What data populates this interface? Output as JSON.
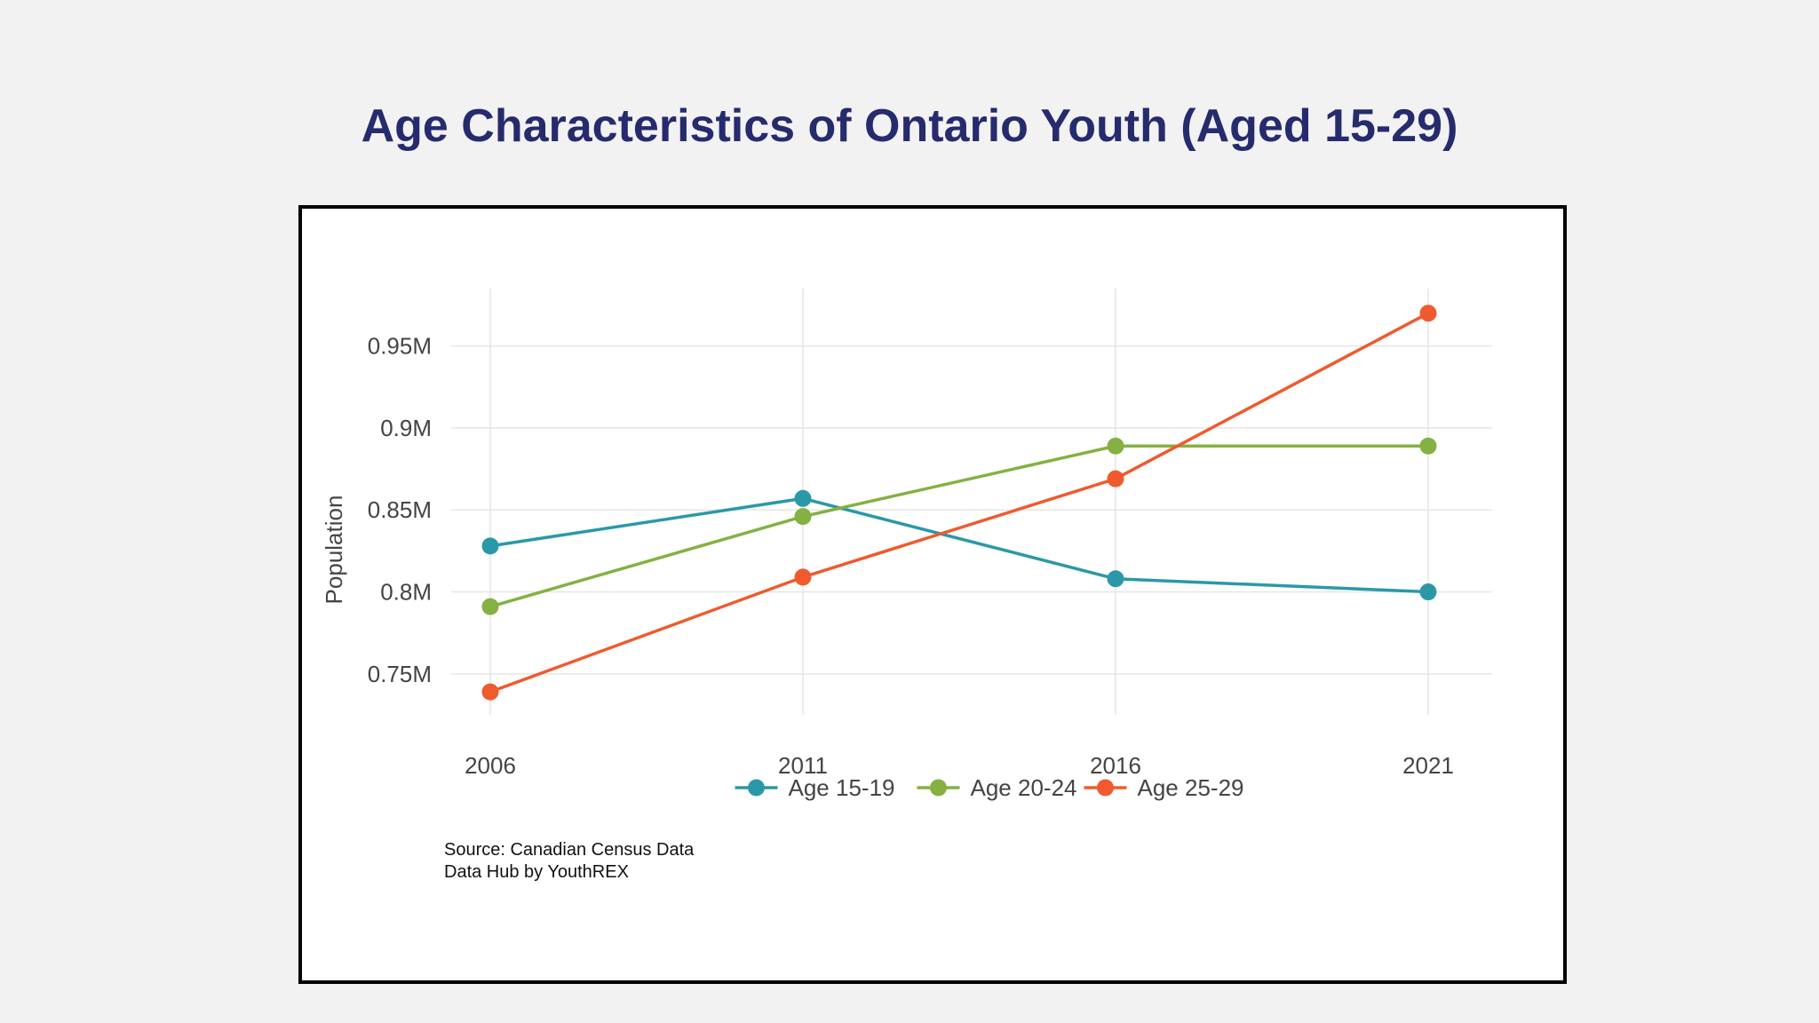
{
  "page": {
    "title": "Age Characteristics of Ontario Youth (Aged 15-29)"
  },
  "source": {
    "line1": "Source: Canadian Census Data",
    "line2": "Data Hub by YouthREX"
  },
  "colors": {
    "title": "#262b6e",
    "grid": "#e6e6e6",
    "tick_text": "#444444"
  },
  "chart_data": {
    "type": "line",
    "title": "Age Characteristics of Ontario Youth (Aged 15-29)",
    "xlabel": "",
    "ylabel": "Population",
    "x": [
      2006,
      2011,
      2016,
      2021
    ],
    "x_tick_labels": [
      "2006",
      "2011",
      "2016",
      "2021"
    ],
    "y_ticks": [
      750000,
      800000,
      850000,
      900000,
      950000
    ],
    "y_tick_labels": [
      "0.75M",
      "0.8M",
      "0.85M",
      "0.9M",
      "0.95M"
    ],
    "ylim": [
      725000,
      985000
    ],
    "grid": true,
    "legend_position": "bottom-center",
    "series": [
      {
        "name": "Age 15-19",
        "color": "#2b98a8",
        "values": [
          828000,
          857000,
          808000,
          800000
        ]
      },
      {
        "name": "Age 20-24",
        "color": "#84b141",
        "values": [
          791000,
          846000,
          889000,
          889000
        ]
      },
      {
        "name": "Age 25-29",
        "color": "#ef5a2e",
        "values": [
          739000,
          809000,
          869000,
          970000
        ]
      }
    ]
  }
}
